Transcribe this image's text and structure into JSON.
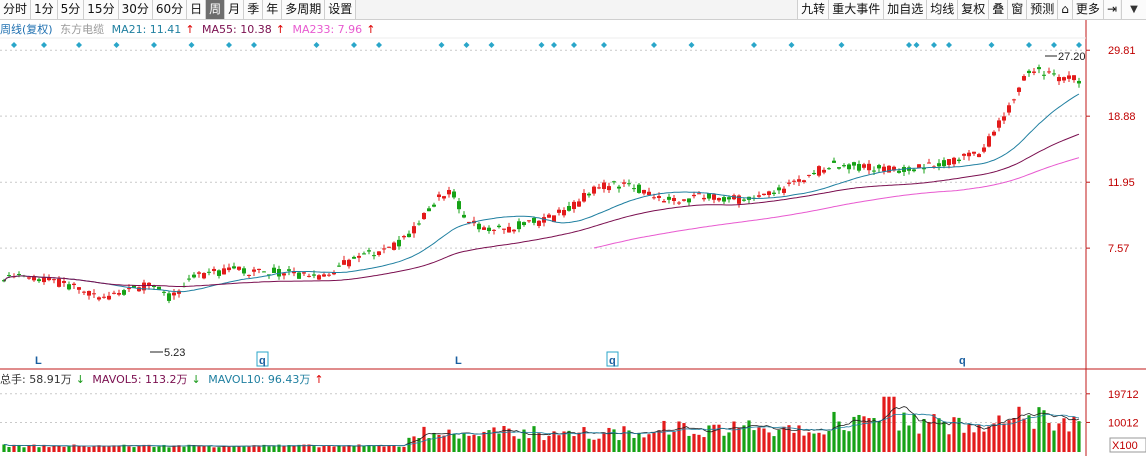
{
  "toolbar": {
    "left": [
      "分时",
      "1分",
      "5分",
      "15分",
      "30分",
      "60分",
      "日",
      "周",
      "月",
      "季",
      "年",
      "多周期",
      "设置"
    ],
    "active": "周",
    "right": [
      "九转",
      "重大事件",
      "加自选",
      "均线",
      "复权",
      "叠",
      "窗",
      "预测",
      "",
      "更多",
      ""
    ]
  },
  "info": {
    "period": "周线(复权)",
    "brand": "东方电缆",
    "ma21": "MA21: 11.41",
    "ma55": "MA55: 10.38",
    "ma233": "MA233: 7.96",
    "colors": {
      "period": "#1e6fb0",
      "brand": "#9a9a9a",
      "ma21": "#1f7fa0",
      "ma55": "#7a0e4f",
      "ma233": "#e85ad0"
    }
  },
  "price_axis": {
    "labels": [
      "29.81",
      "18.88",
      "11.95",
      "7.57"
    ],
    "log": true,
    "ylim": [
      3.3,
      32
    ]
  },
  "annotations": {
    "high": "27.20",
    "low": "5.23",
    "markers": [
      "L",
      "q",
      "L",
      "q",
      "q"
    ]
  },
  "volume_info": {
    "total": "总手: 58.91万",
    "mavol5": "MAVOL5: 113.2万",
    "mavol10": "MAVOL10: 96.43万"
  },
  "volume_axis": {
    "labels": [
      "19712",
      "10012"
    ],
    "unit": "X100"
  },
  "chart_data": {
    "type": "candlestick",
    "price_scale": "log",
    "series_names": [
      "MA21",
      "MA55",
      "MA233"
    ],
    "anchors_close": [
      [
        0,
        6.2
      ],
      [
        20,
        6.0
      ],
      [
        35,
        5.6
      ],
      [
        37,
        5.23
      ],
      [
        45,
        5.5
      ],
      [
        60,
        5.9
      ],
      [
        66,
        5.3
      ],
      [
        75,
        6.2
      ],
      [
        90,
        6.5
      ],
      [
        110,
        6.4
      ],
      [
        125,
        6.2
      ],
      [
        140,
        7.0
      ],
      [
        160,
        8.0
      ],
      [
        170,
        10.0
      ],
      [
        178,
        11.5
      ],
      [
        185,
        9.0
      ],
      [
        200,
        8.6
      ],
      [
        220,
        9.4
      ],
      [
        238,
        11.6
      ],
      [
        250,
        11.8
      ],
      [
        265,
        10.5
      ],
      [
        280,
        10.8
      ],
      [
        300,
        10.5
      ],
      [
        310,
        11.3
      ],
      [
        330,
        13.5
      ],
      [
        345,
        13.2
      ],
      [
        360,
        13.1
      ],
      [
        375,
        13.6
      ],
      [
        390,
        14.5
      ],
      [
        400,
        19.0
      ],
      [
        410,
        26.0
      ],
      [
        420,
        25.0
      ],
      [
        430,
        24.2
      ]
    ],
    "high": 27.2,
    "low": 5.23
  }
}
